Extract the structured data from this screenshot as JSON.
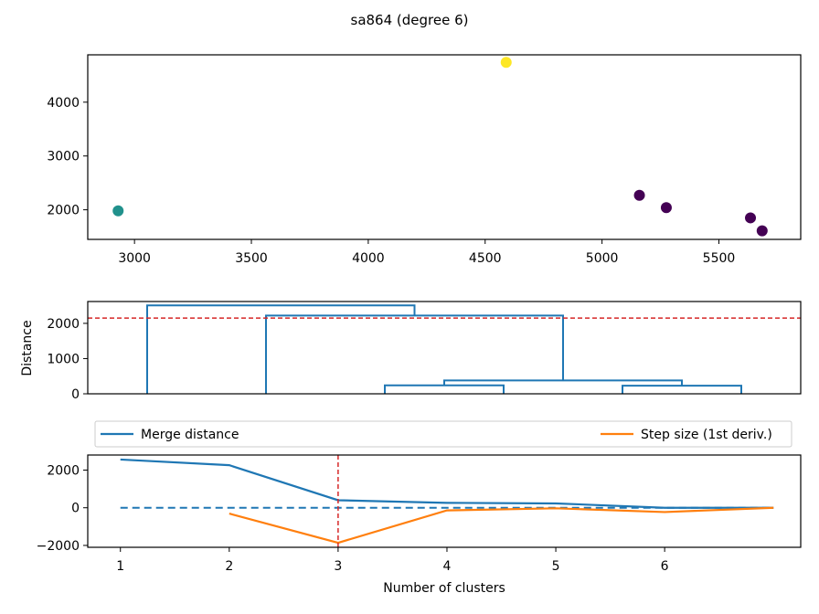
{
  "figure": {
    "title": "sa864 (degree 6)"
  },
  "chart_data": [
    {
      "type": "scatter",
      "panel": "clusters",
      "xlim": [
        2800,
        5850
      ],
      "ylim": [
        1450,
        4880
      ],
      "xticks": [
        3000,
        3500,
        4000,
        4500,
        5000,
        5500
      ],
      "yticks": [
        2000,
        3000,
        4000
      ],
      "points": [
        {
          "x": 2930,
          "y": 1980,
          "color": "#21918c"
        },
        {
          "x": 4590,
          "y": 4740,
          "color": "#fde725"
        },
        {
          "x": 5160,
          "y": 2270,
          "color": "#440154"
        },
        {
          "x": 5275,
          "y": 2040,
          "color": "#440154"
        },
        {
          "x": 5635,
          "y": 1850,
          "color": "#440154"
        },
        {
          "x": 5685,
          "y": 1610,
          "color": "#440154"
        }
      ]
    },
    {
      "type": "dendrogram",
      "panel": "dendrogram",
      "ylabel": "Distance",
      "ylim": [
        0,
        2620
      ],
      "yticks": [
        0,
        1000,
        2000
      ],
      "xlim": [
        0,
        60
      ],
      "threshold": 2150,
      "threshold_color": "#d62728",
      "link_color": "#1f77b4",
      "links": [
        {
          "x": [
            45,
            45,
            55,
            55
          ],
          "y": [
            0,
            230,
            230,
            0
          ]
        },
        {
          "x": [
            25,
            25,
            35,
            35
          ],
          "y": [
            0,
            240,
            240,
            0
          ]
        },
        {
          "x": [
            30,
            30,
            50,
            50
          ],
          "y": [
            240,
            380,
            380,
            230
          ]
        },
        {
          "x": [
            15,
            15,
            40,
            40
          ],
          "y": [
            0,
            2220,
            2220,
            380
          ]
        },
        {
          "x": [
            5,
            5,
            27.5,
            27.5
          ],
          "y": [
            0,
            2510,
            2510,
            2220
          ]
        }
      ]
    },
    {
      "type": "line",
      "panel": "elbow",
      "xlabel": "Number of clusters",
      "xlim": [
        0.7,
        7.25
      ],
      "ylim": [
        -2100,
        2800
      ],
      "xticks": [
        1,
        2,
        3,
        4,
        5,
        6
      ],
      "yticks": [
        -2000,
        0,
        2000
      ],
      "vline": 3,
      "vline_color": "#d62728",
      "legend_placement": "above",
      "series": [
        {
          "name": "Merge distance",
          "color": "#1f77b4",
          "x": [
            1,
            2,
            3,
            4,
            5,
            6,
            7
          ],
          "values": [
            2560,
            2260,
            400,
            260,
            230,
            0,
            0
          ]
        },
        {
          "name": "Step size (1st deriv.)",
          "color": "#ff7f0e",
          "x": [
            2,
            3,
            4,
            5,
            6,
            7
          ],
          "values": [
            -310,
            -1860,
            -140,
            -30,
            -230,
            0
          ]
        }
      ],
      "zero_line": {
        "color": "#1f77b4",
        "style": "dashed",
        "x": [
          1,
          7
        ]
      }
    }
  ]
}
